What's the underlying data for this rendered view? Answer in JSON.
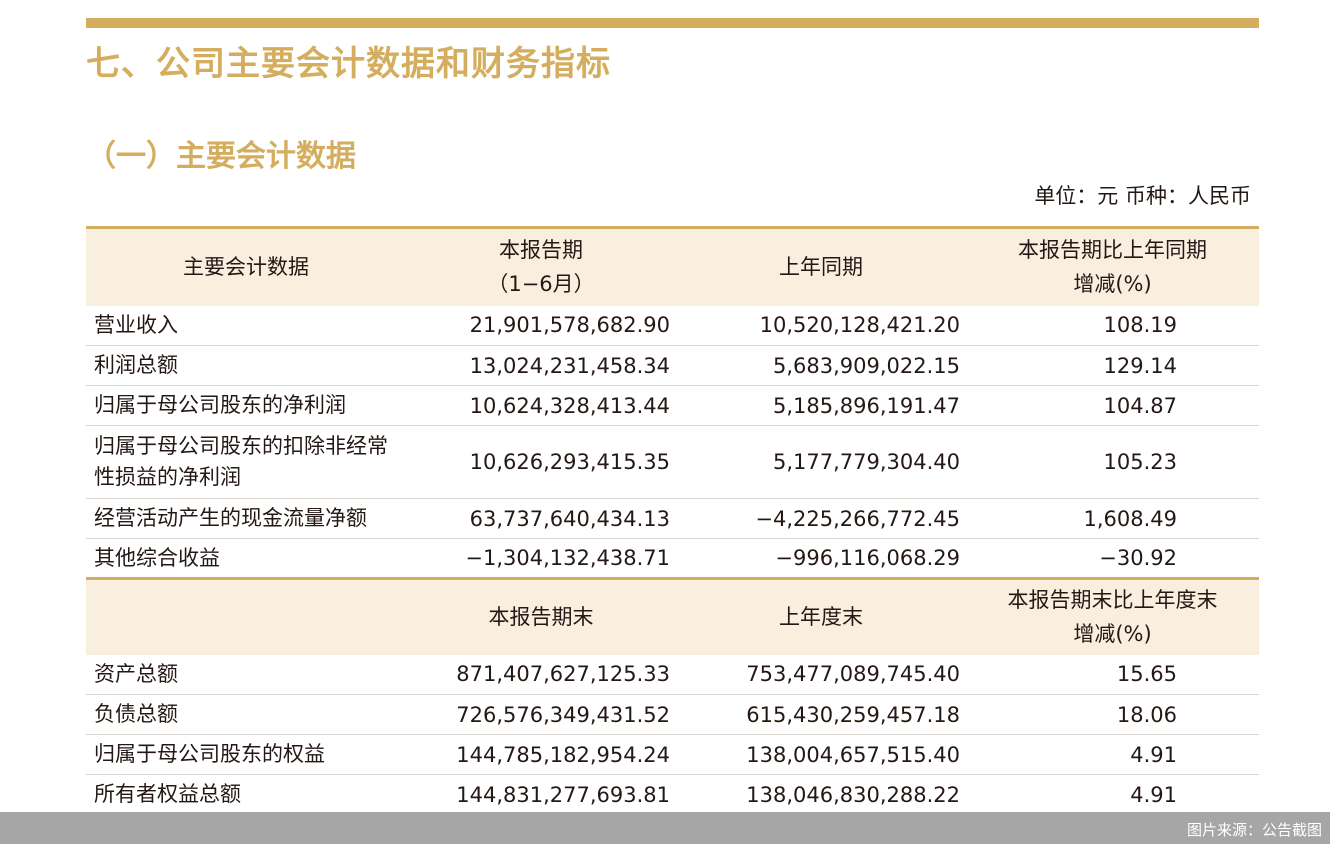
{
  "section_title": "七、公司主要会计数据和财务指标",
  "subsection_title": "（一）主要会计数据",
  "unit_note": "单位：元 币种：人民币",
  "table": {
    "header_1": {
      "col0": "主要会计数据",
      "col1_line1": "本报告期",
      "col1_line2": "（1−6月）",
      "col2": "上年同期",
      "col3_line1": "本报告期比上年同期",
      "col3_line2": "增减(%)"
    },
    "rows_1": [
      {
        "label": "营业收入",
        "current": "21,901,578,682.90",
        "previous": "10,520,128,421.20",
        "change": "108.19"
      },
      {
        "label": "利润总额",
        "current": "13,024,231,458.34",
        "previous": "5,683,909,022.15",
        "change": "129.14"
      },
      {
        "label": "归属于母公司股东的净利润",
        "current": "10,624,328,413.44",
        "previous": "5,185,896,191.47",
        "change": "104.87"
      },
      {
        "label_line1": "归属于母公司股东的扣除非经常",
        "label_line2": "性损益的净利润",
        "current": "10,626,293,415.35",
        "previous": "5,177,779,304.40",
        "change": "105.23"
      },
      {
        "label": "经营活动产生的现金流量净额",
        "current": "63,737,640,434.13",
        "previous": "−4,225,266,772.45",
        "change": "1,608.49"
      },
      {
        "label": "其他综合收益",
        "current": "−1,304,132,438.71",
        "previous": "−996,116,068.29",
        "change": "−30.92"
      }
    ],
    "header_2": {
      "col1": "本报告期末",
      "col2": "上年度末",
      "col3_line1": "本报告期末比上年度末",
      "col3_line2": "增减(%)"
    },
    "rows_2": [
      {
        "label": "资产总额",
        "current": "871,407,627,125.33",
        "previous": "753,477,089,745.40",
        "change": "15.65"
      },
      {
        "label": "负债总额",
        "current": "726,576,349,431.52",
        "previous": "615,430,259,457.18",
        "change": "18.06"
      },
      {
        "label": "归属于母公司股东的权益",
        "current": "144,785,182,954.24",
        "previous": "138,004,657,515.40",
        "change": "4.91"
      },
      {
        "label": "所有者权益总额",
        "current": "144,831,277,693.81",
        "previous": "138,046,830,288.22",
        "change": "4.91"
      }
    ]
  },
  "footer_source": "图片来源：公告截图",
  "colors": {
    "accent_gold": "#d4ae5e",
    "header_fill": "#f8efde",
    "footer_bar": "#a6a6a6"
  }
}
